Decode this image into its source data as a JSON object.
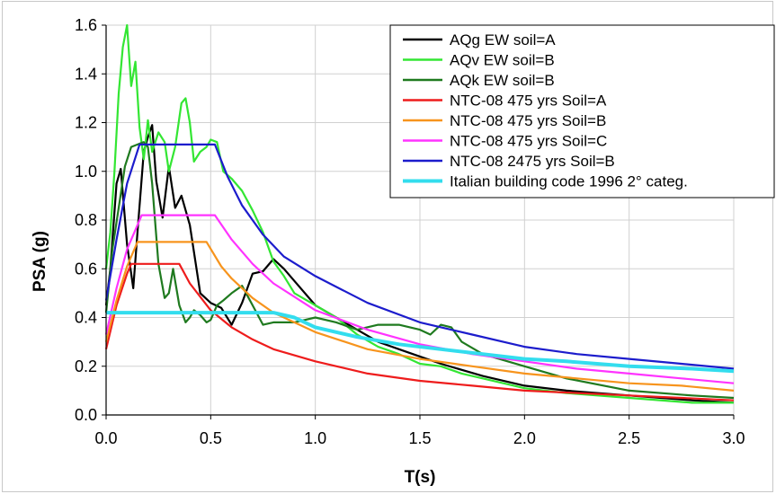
{
  "chart_data": {
    "type": "line",
    "title": "",
    "xlabel": "T(s)",
    "ylabel": "PSA (g)",
    "xlim": [
      0,
      3
    ],
    "ylim": [
      0,
      1.6
    ],
    "xticks": [
      "0.0",
      "0.5",
      "1.0",
      "1.5",
      "2.0",
      "2.5",
      "3.0"
    ],
    "yticks": [
      "0.0",
      "0.2",
      "0.4",
      "0.6",
      "0.8",
      "1.0",
      "1.2",
      "1.4",
      "1.6"
    ],
    "grid": true,
    "legend_position": "top-right",
    "series": [
      {
        "name": "AQg EW soil=A",
        "color": "#000000",
        "x": [
          0,
          0.02,
          0.05,
          0.07,
          0.1,
          0.13,
          0.15,
          0.18,
          0.2,
          0.22,
          0.24,
          0.27,
          0.3,
          0.33,
          0.36,
          0.4,
          0.45,
          0.5,
          0.55,
          0.6,
          0.65,
          0.7,
          0.75,
          0.8,
          0.85,
          0.9,
          1.0,
          1.1,
          1.2,
          1.3,
          1.4,
          1.5,
          1.6,
          1.8,
          2.0,
          2.2,
          2.5,
          2.8,
          3.0
        ],
        "y": [
          0.45,
          0.6,
          0.95,
          1.01,
          0.7,
          0.52,
          0.75,
          1.08,
          1.14,
          1.19,
          0.96,
          0.81,
          1.02,
          0.85,
          0.9,
          0.78,
          0.5,
          0.46,
          0.44,
          0.37,
          0.46,
          0.58,
          0.59,
          0.64,
          0.6,
          0.55,
          0.45,
          0.4,
          0.35,
          0.3,
          0.27,
          0.24,
          0.21,
          0.16,
          0.12,
          0.1,
          0.08,
          0.06,
          0.05
        ]
      },
      {
        "name": "AQv EW soil=B",
        "color": "#33e633",
        "x": [
          0,
          0.02,
          0.04,
          0.06,
          0.08,
          0.1,
          0.12,
          0.14,
          0.16,
          0.18,
          0.2,
          0.22,
          0.25,
          0.28,
          0.3,
          0.33,
          0.36,
          0.38,
          0.4,
          0.42,
          0.45,
          0.48,
          0.5,
          0.53,
          0.56,
          0.6,
          0.65,
          0.7,
          0.75,
          0.8,
          0.85,
          0.9,
          1.0,
          1.1,
          1.2,
          1.3,
          1.4,
          1.5,
          1.6,
          1.7,
          1.8,
          2.0,
          2.2,
          2.5,
          2.8,
          3.0
        ],
        "y": [
          0.6,
          0.75,
          1.0,
          1.32,
          1.51,
          1.6,
          1.35,
          1.45,
          1.18,
          1.05,
          1.21,
          1.08,
          1.16,
          1.12,
          1.0,
          1.1,
          1.28,
          1.3,
          1.2,
          1.04,
          1.08,
          1.1,
          1.13,
          1.12,
          1.0,
          0.97,
          0.92,
          0.84,
          0.75,
          0.63,
          0.57,
          0.5,
          0.45,
          0.4,
          0.33,
          0.28,
          0.25,
          0.21,
          0.2,
          0.17,
          0.15,
          0.11,
          0.09,
          0.07,
          0.05,
          0.05
        ]
      },
      {
        "name": "AQk EW soil=B",
        "color": "#1f7a1f",
        "x": [
          0,
          0.03,
          0.06,
          0.09,
          0.12,
          0.15,
          0.18,
          0.2,
          0.22,
          0.25,
          0.28,
          0.3,
          0.32,
          0.35,
          0.38,
          0.4,
          0.42,
          0.45,
          0.48,
          0.5,
          0.53,
          0.56,
          0.6,
          0.65,
          0.7,
          0.75,
          0.8,
          0.85,
          0.9,
          1.0,
          1.1,
          1.2,
          1.3,
          1.4,
          1.5,
          1.55,
          1.6,
          1.65,
          1.7,
          1.8,
          2.0,
          2.2,
          2.5,
          2.8,
          3.0
        ],
        "y": [
          0.42,
          0.68,
          0.85,
          1.02,
          1.1,
          1.11,
          1.12,
          1.1,
          0.95,
          0.62,
          0.48,
          0.5,
          0.6,
          0.45,
          0.38,
          0.4,
          0.43,
          0.41,
          0.38,
          0.39,
          0.45,
          0.47,
          0.5,
          0.53,
          0.45,
          0.37,
          0.38,
          0.38,
          0.38,
          0.4,
          0.38,
          0.35,
          0.37,
          0.37,
          0.35,
          0.33,
          0.37,
          0.36,
          0.3,
          0.25,
          0.2,
          0.15,
          0.1,
          0.08,
          0.07
        ]
      },
      {
        "name": "NTC-08 475 yrs Soil=A",
        "color": "#ee1c1c",
        "x": [
          0,
          0.05,
          0.1,
          0.12,
          0.35,
          0.4,
          0.5,
          0.6,
          0.7,
          0.8,
          1.0,
          1.25,
          1.5,
          1.75,
          2.0,
          2.25,
          2.5,
          2.75,
          3.0
        ],
        "y": [
          0.27,
          0.45,
          0.58,
          0.62,
          0.62,
          0.54,
          0.43,
          0.36,
          0.31,
          0.27,
          0.22,
          0.17,
          0.14,
          0.12,
          0.1,
          0.09,
          0.08,
          0.07,
          0.06
        ]
      },
      {
        "name": "NTC-08 475 yrs Soil=B",
        "color": "#f7941d",
        "x": [
          0,
          0.05,
          0.1,
          0.15,
          0.48,
          0.55,
          0.6,
          0.7,
          0.8,
          1.0,
          1.25,
          1.5,
          1.75,
          2.0,
          2.25,
          2.5,
          2.75,
          3.0
        ],
        "y": [
          0.3,
          0.47,
          0.61,
          0.71,
          0.71,
          0.61,
          0.56,
          0.48,
          0.42,
          0.34,
          0.27,
          0.23,
          0.2,
          0.17,
          0.15,
          0.13,
          0.12,
          0.1
        ]
      },
      {
        "name": "NTC-08 475 yrs Soil=C",
        "color": "#ff33ff",
        "x": [
          0,
          0.05,
          0.1,
          0.17,
          0.52,
          0.6,
          0.7,
          0.8,
          1.0,
          1.25,
          1.5,
          1.75,
          2.0,
          2.25,
          2.5,
          2.75,
          3.0
        ],
        "y": [
          0.33,
          0.52,
          0.68,
          0.82,
          0.82,
          0.72,
          0.62,
          0.54,
          0.43,
          0.35,
          0.29,
          0.25,
          0.22,
          0.19,
          0.17,
          0.15,
          0.13
        ]
      },
      {
        "name": "NTC-08 2475 yrs Soil=B",
        "color": "#1c1ccc",
        "x": [
          0,
          0.05,
          0.1,
          0.16,
          0.52,
          0.58,
          0.65,
          0.75,
          0.85,
          1.0,
          1.25,
          1.5,
          1.75,
          2.0,
          2.25,
          2.5,
          2.75,
          3.0
        ],
        "y": [
          0.47,
          0.72,
          0.95,
          1.11,
          1.11,
          0.98,
          0.86,
          0.74,
          0.65,
          0.57,
          0.46,
          0.38,
          0.33,
          0.28,
          0.25,
          0.23,
          0.21,
          0.19
        ]
      },
      {
        "name": "Italian building code 1996 2° categ.",
        "color": "#33ddee",
        "x": [
          0,
          0.8,
          0.9,
          1.0,
          1.2,
          1.4,
          1.6,
          1.8,
          2.0,
          2.2,
          2.5,
          2.8,
          3.0
        ],
        "y": [
          0.42,
          0.42,
          0.4,
          0.36,
          0.32,
          0.29,
          0.27,
          0.25,
          0.23,
          0.22,
          0.2,
          0.19,
          0.18
        ]
      }
    ]
  }
}
